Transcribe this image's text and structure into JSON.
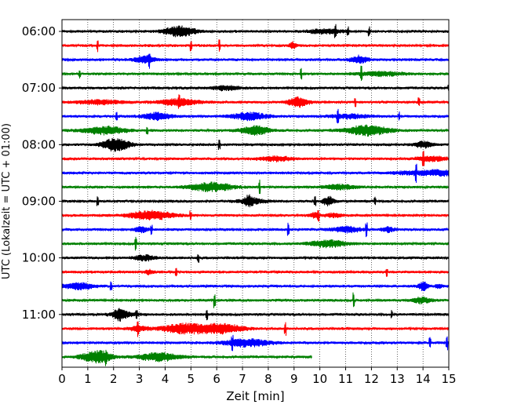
{
  "chart_data": {
    "type": "line",
    "title": "",
    "xlabel": "Zeit  [min]",
    "ylabel": "UTC (Lokalzeit = UTC + 01:00)",
    "xlim": [
      0,
      15
    ],
    "x_ticks": [
      "0",
      "1",
      "2",
      "3",
      "4",
      "5",
      "6",
      "7",
      "8",
      "9",
      "10",
      "11",
      "12",
      "13",
      "14",
      "15"
    ],
    "y_ticks": [
      {
        "label": "06:00",
        "row": 0
      },
      {
        "label": "07:00",
        "row": 4
      },
      {
        "label": "08:00",
        "row": 8
      },
      {
        "label": "09:00",
        "row": 12
      },
      {
        "label": "10:00",
        "row": 16
      },
      {
        "label": "11:00",
        "row": 20
      }
    ],
    "grid": "vertical dotted lines at each minute",
    "row_interval_min": 15,
    "color_cycle": [
      "#000000",
      "#ff0000",
      "#0000ff",
      "#008000"
    ],
    "rows": [
      {
        "start": "06:00",
        "color": "#000000",
        "end_min": 15
      },
      {
        "start": "06:15",
        "color": "#ff0000",
        "end_min": 15
      },
      {
        "start": "06:30",
        "color": "#0000ff",
        "end_min": 15
      },
      {
        "start": "06:45",
        "color": "#008000",
        "end_min": 15
      },
      {
        "start": "07:00",
        "color": "#000000",
        "end_min": 15
      },
      {
        "start": "07:15",
        "color": "#ff0000",
        "end_min": 15
      },
      {
        "start": "07:30",
        "color": "#0000ff",
        "end_min": 15
      },
      {
        "start": "07:45",
        "color": "#008000",
        "end_min": 15
      },
      {
        "start": "08:00",
        "color": "#000000",
        "end_min": 15
      },
      {
        "start": "08:15",
        "color": "#ff0000",
        "end_min": 15
      },
      {
        "start": "08:30",
        "color": "#0000ff",
        "end_min": 15
      },
      {
        "start": "08:45",
        "color": "#008000",
        "end_min": 15
      },
      {
        "start": "09:00",
        "color": "#000000",
        "end_min": 15
      },
      {
        "start": "09:15",
        "color": "#ff0000",
        "end_min": 15
      },
      {
        "start": "09:30",
        "color": "#0000ff",
        "end_min": 15
      },
      {
        "start": "09:45",
        "color": "#008000",
        "end_min": 15
      },
      {
        "start": "10:00",
        "color": "#000000",
        "end_min": 15
      },
      {
        "start": "10:15",
        "color": "#ff0000",
        "end_min": 15
      },
      {
        "start": "10:30",
        "color": "#0000ff",
        "end_min": 15
      },
      {
        "start": "10:45",
        "color": "#008000",
        "end_min": 15
      },
      {
        "start": "11:00",
        "color": "#000000",
        "end_min": 15
      },
      {
        "start": "11:15",
        "color": "#ff0000",
        "end_min": 15
      },
      {
        "start": "11:30",
        "color": "#0000ff",
        "end_min": 15
      },
      {
        "start": "11:45",
        "color": "#008000",
        "end_min": 9.7
      }
    ]
  }
}
